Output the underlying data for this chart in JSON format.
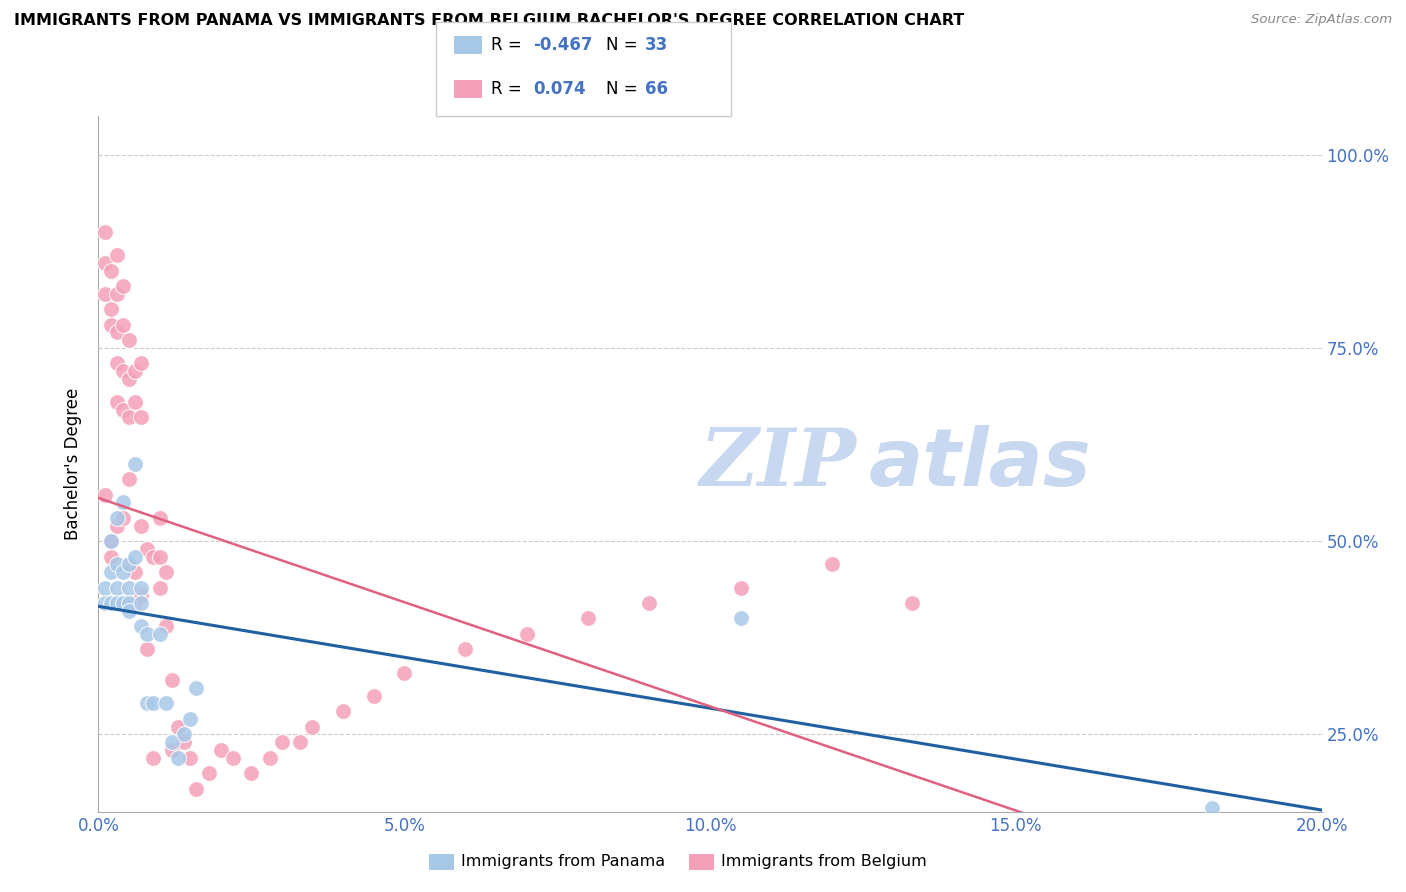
{
  "title": "IMMIGRANTS FROM PANAMA VS IMMIGRANTS FROM BELGIUM BACHELOR'S DEGREE CORRELATION CHART",
  "source": "Source: ZipAtlas.com",
  "ylabel": "Bachelor's Degree",
  "xlim": [
    0.0,
    0.2
  ],
  "ylim": [
    0.15,
    1.05
  ],
  "x_ticks": [
    0.0,
    0.05,
    0.1,
    0.15,
    0.2
  ],
  "y_ticks": [
    0.25,
    0.5,
    0.75,
    1.0
  ],
  "y_tick_labels_right": [
    "25.0%",
    "50.0%",
    "75.0%",
    "100.0%"
  ],
  "blue_color": "#a8c8e8",
  "pink_color": "#f4a0b8",
  "blue_line_color": "#2060a0",
  "pink_line_color": "#e06080",
  "watermark_color": "#c8d8f0",
  "blue_x": [
    0.001,
    0.001,
    0.002,
    0.002,
    0.002,
    0.003,
    0.003,
    0.003,
    0.003,
    0.004,
    0.004,
    0.004,
    0.005,
    0.005,
    0.005,
    0.005,
    0.006,
    0.006,
    0.007,
    0.007,
    0.007,
    0.008,
    0.008,
    0.009,
    0.01,
    0.011,
    0.012,
    0.013,
    0.014,
    0.015,
    0.016,
    0.105,
    0.182
  ],
  "blue_y": [
    0.44,
    0.42,
    0.5,
    0.46,
    0.42,
    0.53,
    0.47,
    0.44,
    0.42,
    0.55,
    0.46,
    0.42,
    0.47,
    0.44,
    0.42,
    0.41,
    0.6,
    0.48,
    0.44,
    0.39,
    0.42,
    0.38,
    0.29,
    0.29,
    0.38,
    0.29,
    0.24,
    0.22,
    0.25,
    0.27,
    0.31,
    0.4,
    0.155
  ],
  "pink_x": [
    0.001,
    0.001,
    0.001,
    0.001,
    0.002,
    0.002,
    0.002,
    0.002,
    0.002,
    0.003,
    0.003,
    0.003,
    0.003,
    0.003,
    0.003,
    0.004,
    0.004,
    0.004,
    0.004,
    0.004,
    0.005,
    0.005,
    0.005,
    0.005,
    0.005,
    0.006,
    0.006,
    0.006,
    0.006,
    0.007,
    0.007,
    0.007,
    0.007,
    0.008,
    0.008,
    0.009,
    0.009,
    0.01,
    0.01,
    0.01,
    0.011,
    0.011,
    0.012,
    0.012,
    0.013,
    0.014,
    0.015,
    0.016,
    0.018,
    0.02,
    0.022,
    0.025,
    0.028,
    0.03,
    0.033,
    0.035,
    0.04,
    0.045,
    0.05,
    0.06,
    0.07,
    0.08,
    0.09,
    0.105,
    0.12,
    0.133
  ],
  "pink_y": [
    0.9,
    0.86,
    0.82,
    0.56,
    0.85,
    0.8,
    0.78,
    0.48,
    0.5,
    0.87,
    0.82,
    0.77,
    0.73,
    0.68,
    0.52,
    0.83,
    0.78,
    0.72,
    0.67,
    0.53,
    0.76,
    0.71,
    0.66,
    0.58,
    0.47,
    0.72,
    0.68,
    0.46,
    0.42,
    0.73,
    0.66,
    0.52,
    0.43,
    0.49,
    0.36,
    0.48,
    0.22,
    0.53,
    0.48,
    0.44,
    0.46,
    0.39,
    0.32,
    0.23,
    0.26,
    0.24,
    0.22,
    0.18,
    0.2,
    0.23,
    0.22,
    0.2,
    0.22,
    0.24,
    0.24,
    0.26,
    0.28,
    0.3,
    0.33,
    0.36,
    0.38,
    0.4,
    0.42,
    0.44,
    0.47,
    0.42
  ],
  "legend_box_blue_text1": "R = ",
  "legend_val_blue": "-0.467",
  "legend_n_blue_label": "N = ",
  "legend_n_blue": "33",
  "legend_box_pink_text1": "R =  ",
  "legend_val_pink": "0.074",
  "legend_n_pink_label": "N = ",
  "legend_n_pink": "66",
  "bottom_legend_blue": "Immigrants from Panama",
  "bottom_legend_pink": "Immigrants from Belgium"
}
